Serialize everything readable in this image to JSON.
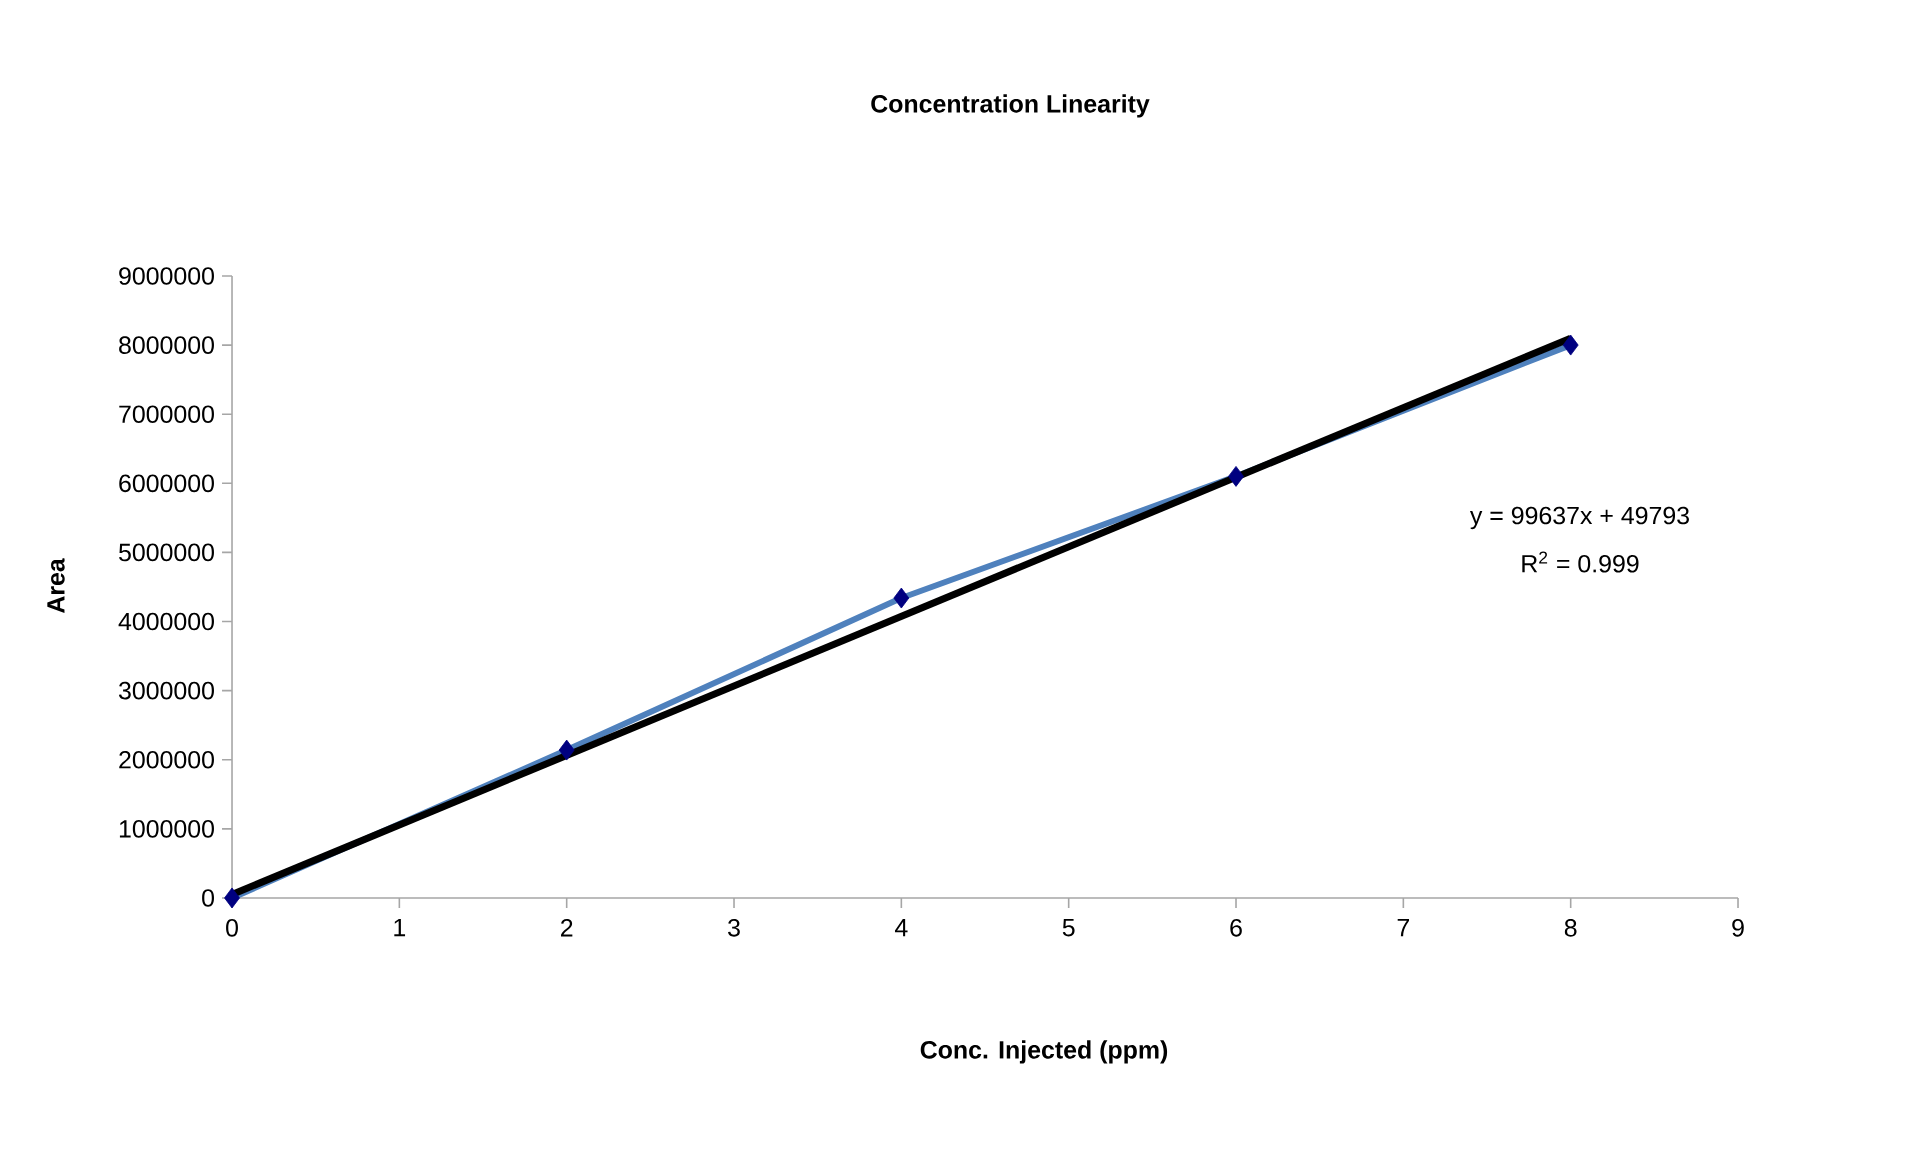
{
  "chart_data": {
    "type": "line",
    "title": "Concentration Linearity",
    "xlabel": "Conc. Injected (ppm)",
    "ylabel": "Area",
    "xlim": [
      0,
      9
    ],
    "xticks": [
      0,
      1,
      2,
      3,
      4,
      5,
      6,
      7,
      8,
      9
    ],
    "ylim": [
      0,
      9000000
    ],
    "yticks": [
      0,
      1000000,
      2000000,
      3000000,
      4000000,
      5000000,
      6000000,
      7000000,
      8000000,
      9000000
    ],
    "grid": false,
    "series": [
      {
        "color": "#4f81bd",
        "colors": [
          "#000080",
          "#000080",
          "#000080",
          "#000080",
          "#000080"
        ],
        "marker": "diamond",
        "x": [
          0,
          2,
          4,
          6,
          8
        ],
        "values": [
          0,
          2140000,
          4340000,
          6100000,
          8000000
        ]
      },
      {
        "color": "#000000",
        "marker": "none",
        "x": [
          0,
          8
        ],
        "values": [
          50000,
          8100000
        ]
      }
    ],
    "annotations": [
      "y = 99637x + 49793",
      "R$^{2}$ = 0.999"
    ]
  }
}
